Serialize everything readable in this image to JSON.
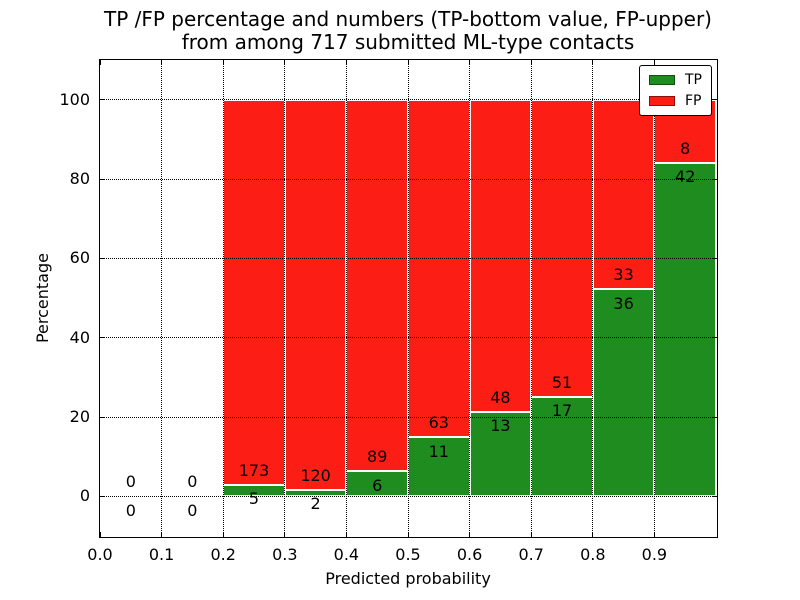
{
  "title": {
    "line1": "TP /FP percentage and numbers (TP-bottom value, FP-upper)",
    "line2": "from among 717 submitted ML-type contacts"
  },
  "legend": {
    "items": [
      {
        "label": "TP",
        "color": "#1e8c1e"
      },
      {
        "label": "FP",
        "color": "#fc1e14"
      }
    ]
  },
  "chart_data": {
    "type": "bar",
    "stacked": true,
    "normalized_to_percent": true,
    "title": "TP /FP percentage and numbers (TP-bottom value, FP-upper) from among 717 submitted ML-type contacts",
    "xlabel": "Predicted probability",
    "ylabel": "Percentage",
    "xlim": [
      0.0,
      1.0
    ],
    "ylim": [
      -10,
      110
    ],
    "grid": "dotted, black, over bars",
    "legend_position": "upper right",
    "total_contacts": 717,
    "bin_width": 0.1,
    "categories": [
      0.0,
      0.1,
      0.2,
      0.3,
      0.4,
      0.5,
      0.6,
      0.7,
      0.8,
      0.9
    ],
    "x_tick_labels": [
      "0.0",
      "0.1",
      "0.2",
      "0.3",
      "0.4",
      "0.5",
      "0.6",
      "0.7",
      "0.8",
      "0.9"
    ],
    "y_tick_values": [
      0,
      20,
      40,
      60,
      80,
      100
    ],
    "y_tick_labels": [
      "0",
      "20",
      "40",
      "60",
      "80",
      "100"
    ],
    "series": [
      {
        "name": "TP",
        "color": "#1e8c1e",
        "counts": [
          0,
          0,
          5,
          2,
          6,
          11,
          13,
          17,
          36,
          42
        ]
      },
      {
        "name": "FP",
        "color": "#fc1e14",
        "counts": [
          0,
          0,
          173,
          120,
          89,
          63,
          48,
          51,
          33,
          8
        ]
      }
    ],
    "tp_percent_per_bin": [
      null,
      null,
      2.81,
      1.64,
      6.32,
      14.86,
      21.31,
      25.0,
      52.17,
      84.0
    ]
  }
}
